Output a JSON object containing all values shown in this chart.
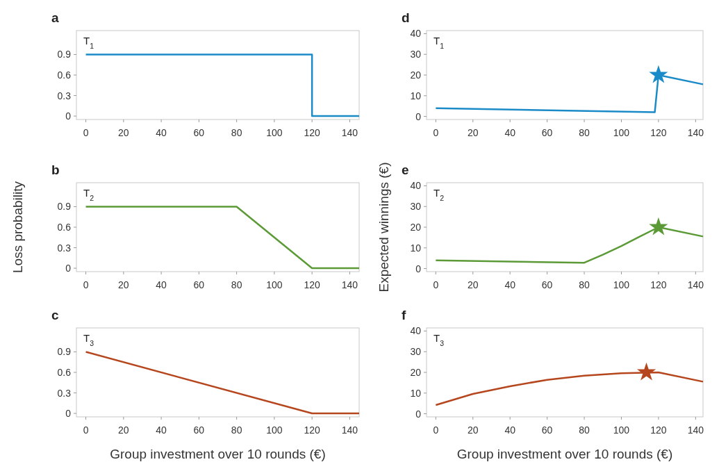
{
  "chart_data": [
    {
      "type": "line",
      "title": "a",
      "annotations": [
        "T$_{1}$"
      ],
      "xlim": [
        -5,
        145
      ],
      "xticks": [
        0,
        20,
        40,
        60,
        80,
        100,
        120,
        140
      ],
      "ylim": [
        -0.05,
        1.25
      ],
      "yticks": [
        0,
        0.3,
        0.6,
        0.9
      ],
      "grid": false,
      "series": [
        {
          "color": "#1b8bc8",
          "x": [
            0,
            120,
            120,
            145
          ],
          "values": [
            0.9,
            0.9,
            0,
            0
          ]
        }
      ]
    },
    {
      "type": "line",
      "title": "b",
      "ylabel": "Loss probability",
      "annotations": [
        "T$_{2}$"
      ],
      "xlim": [
        -5,
        145
      ],
      "xticks": [
        0,
        20,
        40,
        60,
        80,
        100,
        120,
        140
      ],
      "ylim": [
        -0.05,
        1.25
      ],
      "yticks": [
        0,
        0.3,
        0.6,
        0.9
      ],
      "grid": false,
      "series": [
        {
          "color": "#5b9a36",
          "x": [
            0,
            80,
            120,
            145
          ],
          "values": [
            0.9,
            0.9,
            0,
            0
          ]
        }
      ]
    },
    {
      "type": "line",
      "title": "c",
      "xlabel": "Group investment over 10 rounds (€)",
      "annotations": [
        "T$_{3}$"
      ],
      "xlim": [
        -5,
        145
      ],
      "xticks": [
        0,
        20,
        40,
        60,
        80,
        100,
        120,
        140
      ],
      "ylim": [
        -0.05,
        1.25
      ],
      "yticks": [
        0,
        0.3,
        0.6,
        0.9
      ],
      "grid": false,
      "series": [
        {
          "color": "#b5461d",
          "x": [
            0,
            120,
            145
          ],
          "values": [
            0.9,
            0,
            0
          ]
        }
      ]
    },
    {
      "type": "line",
      "title": "d",
      "annotations": [
        "T$_{1}$"
      ],
      "xlim": [
        -5,
        144
      ],
      "xticks": [
        0,
        20,
        40,
        60,
        80,
        100,
        120,
        140
      ],
      "ylim": [
        -1.5,
        41.5
      ],
      "yticks": [
        0,
        10,
        20,
        30,
        40
      ],
      "grid": false,
      "series": [
        {
          "color": "#1b8bc8",
          "x": [
            0,
            118,
            120,
            144
          ],
          "values": [
            4,
            2,
            20,
            15.5
          ]
        },
        {
          "type": "scatter",
          "marker": "star",
          "color": "#1b8bc8",
          "x": [
            120
          ],
          "values": [
            20
          ]
        }
      ]
    },
    {
      "type": "line",
      "title": "e",
      "ylabel": "Expected winnings (€)",
      "annotations": [
        "T$_{2}$"
      ],
      "xlim": [
        -5,
        144
      ],
      "xticks": [
        0,
        20,
        40,
        60,
        80,
        100,
        120,
        140
      ],
      "ylim": [
        -1.5,
        41.5
      ],
      "yticks": [
        0,
        10,
        20,
        30,
        40
      ],
      "grid": false,
      "series": [
        {
          "color": "#5b9a36",
          "x": [
            0,
            80,
            90,
            100,
            110,
            120,
            144
          ],
          "values": [
            4,
            2.8,
            6.7,
            10.9,
            15.5,
            20,
            15.5
          ]
        },
        {
          "type": "scatter",
          "marker": "star",
          "color": "#5b9a36",
          "x": [
            120
          ],
          "values": [
            20
          ]
        }
      ]
    },
    {
      "type": "line",
      "title": "f",
      "xlabel": "Group investment over 10 rounds (€)",
      "annotations": [
        "T$_{3}$"
      ],
      "xlim": [
        -5,
        144
      ],
      "xticks": [
        0,
        20,
        40,
        60,
        80,
        100,
        120,
        140
      ],
      "ylim": [
        -1.5,
        41.5
      ],
      "yticks": [
        0,
        10,
        20,
        30,
        40
      ],
      "grid": false,
      "series": [
        {
          "color": "#b5461d",
          "x": [
            0,
            20,
            40,
            60,
            80,
            100,
            120,
            144
          ],
          "values": [
            4.2,
            9.6,
            13.3,
            16.4,
            18.4,
            19.6,
            20,
            15.5
          ]
        },
        {
          "type": "scatter",
          "marker": "star",
          "color": "#b5461d",
          "x": [
            113.5
          ],
          "values": [
            20
          ]
        }
      ]
    }
  ]
}
